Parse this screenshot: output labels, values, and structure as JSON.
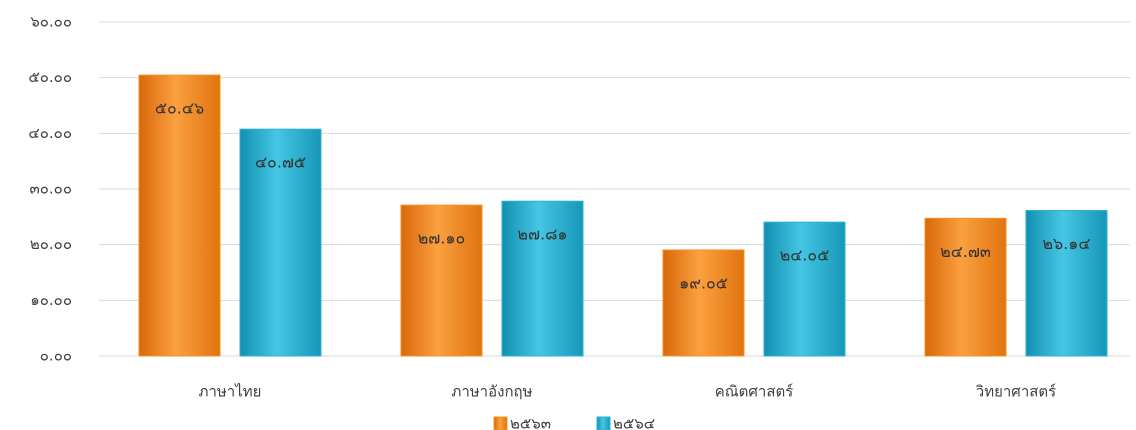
{
  "chart_data": {
    "type": "bar",
    "categories": [
      "ภาษาไทย",
      "ภาษาอังกฤษ",
      "คณิตศาสตร์",
      "วิทยาศาสตร์"
    ],
    "series": [
      {
        "name": "๒๕๖๓",
        "color": "#f7901e",
        "values": [
          50.46,
          27.1,
          19.05,
          24.73
        ],
        "value_labels": [
          "๕๐.๔๖",
          "๒๗.๑๐",
          "๑๙.๐๕",
          "๒๔.๗๓"
        ]
      },
      {
        "name": "๒๕๖๔",
        "color": "#2bb3d3",
        "values": [
          40.75,
          27.81,
          24.05,
          26.14
        ],
        "value_labels": [
          "๔๐.๗๕",
          "๒๗.๘๑",
          "๒๔.๐๕",
          "๒๖.๑๔"
        ]
      }
    ],
    "ylim": [
      0,
      60
    ],
    "yticks": [
      {
        "value": 0,
        "label": "๐.๐๐"
      },
      {
        "value": 10,
        "label": "๑๐.๐๐"
      },
      {
        "value": 20,
        "label": "๒๐.๐๐"
      },
      {
        "value": 30,
        "label": "๓๐.๐๐"
      },
      {
        "value": 40,
        "label": "๔๐.๐๐"
      },
      {
        "value": 50,
        "label": "๕๐.๐๐"
      },
      {
        "value": 60,
        "label": "๖๐.๐๐"
      }
    ],
    "grid": true,
    "legend": "bottom"
  }
}
